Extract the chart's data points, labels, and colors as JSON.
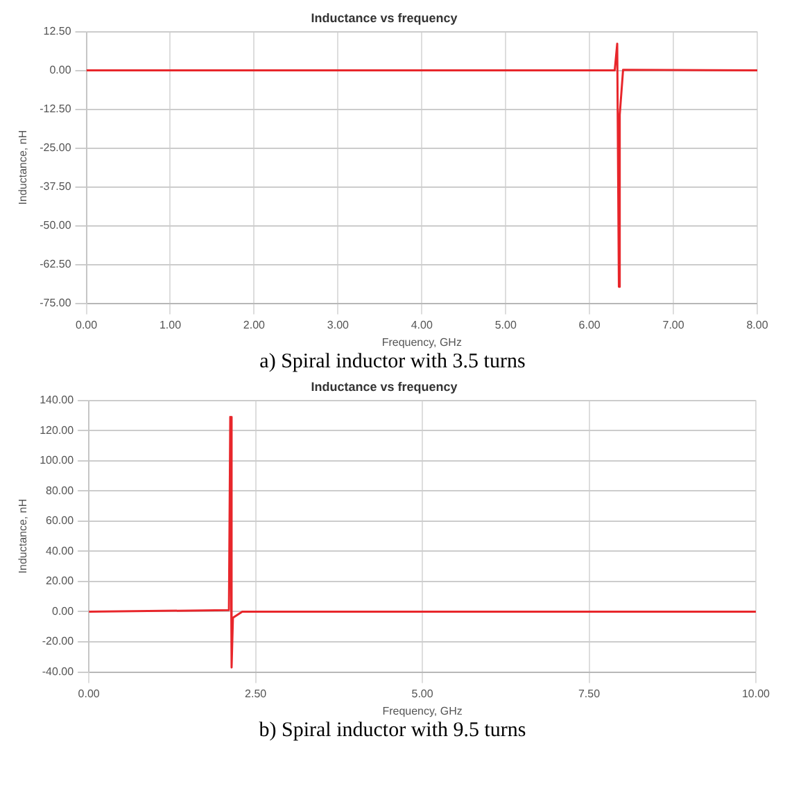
{
  "chart_data": [
    {
      "type": "line",
      "title": "Inductance vs frequency",
      "xlabel": "Frequency, GHz",
      "ylabel": "Inductance, nH",
      "x": [
        0,
        6.3,
        6.33,
        6.35,
        6.36,
        6.4,
        8
      ],
      "series": [
        {
          "color": "#e8262b",
          "values": [
            0,
            0,
            8.6,
            -69.7,
            -14.3,
            0.2,
            0
          ]
        }
      ],
      "xlim": [
        0,
        8
      ],
      "xticks": [
        {
          "value": 0,
          "label": "0.00"
        },
        {
          "value": 1,
          "label": "1.00"
        },
        {
          "value": 2,
          "label": "2.00"
        },
        {
          "value": 3,
          "label": "3.00"
        },
        {
          "value": 4,
          "label": "4.00"
        },
        {
          "value": 5,
          "label": "5.00"
        },
        {
          "value": 6,
          "label": "6.00"
        },
        {
          "value": 7,
          "label": "7.00"
        },
        {
          "value": 8,
          "label": "8.00"
        }
      ],
      "ylim": [
        -75,
        12.5
      ],
      "yticks": [
        {
          "value": -75,
          "label": "-75.00"
        },
        {
          "value": -62.5,
          "label": "-62.50"
        },
        {
          "value": -50,
          "label": "-50.00"
        },
        {
          "value": -37.5,
          "label": "-37.50"
        },
        {
          "value": -25,
          "label": "-25.00"
        },
        {
          "value": -12.5,
          "label": "-12.50"
        },
        {
          "value": 0,
          "label": "0.00"
        },
        {
          "value": 12.5,
          "label": "12.50"
        }
      ],
      "grid": true,
      "legend": false,
      "annotations": [
        "a) Spiral inductor with 3.5 turns"
      ]
    },
    {
      "type": "line",
      "title": "Inductance vs frequency",
      "xlabel": "Frequency, GHz",
      "ylabel": "Inductance, nH",
      "x": [
        0,
        2.1,
        2.12,
        2.14,
        2.16,
        2.3,
        10
      ],
      "series": [
        {
          "color": "#e8262b",
          "values": [
            0,
            1,
            129,
            -37,
            -4,
            0,
            0
          ]
        }
      ],
      "xlim": [
        0,
        10
      ],
      "xticks": [
        {
          "value": 0,
          "label": "0.00"
        },
        {
          "value": 2.5,
          "label": "2.50"
        },
        {
          "value": 5,
          "label": "5.00"
        },
        {
          "value": 7.5,
          "label": "7.50"
        },
        {
          "value": 10,
          "label": "10.00"
        }
      ],
      "ylim": [
        -40,
        140
      ],
      "yticks": [
        {
          "value": -40,
          "label": "-40.00"
        },
        {
          "value": -20,
          "label": "-20.00"
        },
        {
          "value": 0,
          "label": "0.00"
        },
        {
          "value": 20,
          "label": "20.00"
        },
        {
          "value": 40,
          "label": "40.00"
        },
        {
          "value": 60,
          "label": "60.00"
        },
        {
          "value": 80,
          "label": "80.00"
        },
        {
          "value": 100,
          "label": "100.00"
        },
        {
          "value": 120,
          "label": "120.00"
        },
        {
          "value": 140,
          "label": "140.00"
        }
      ],
      "grid": true,
      "legend": false,
      "annotations": [
        "b) Spiral inductor with 9.5 turns"
      ]
    }
  ]
}
